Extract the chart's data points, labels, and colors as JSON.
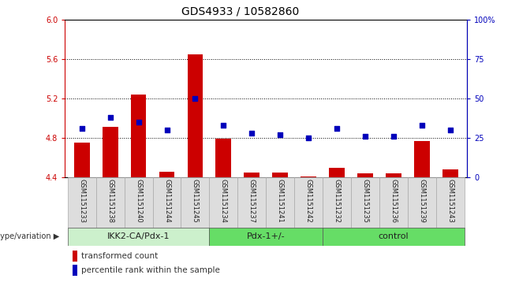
{
  "title": "GDS4933 / 10582860",
  "samples": [
    "GSM1151233",
    "GSM1151238",
    "GSM1151240",
    "GSM1151244",
    "GSM1151245",
    "GSM1151234",
    "GSM1151237",
    "GSM1151241",
    "GSM1151242",
    "GSM1151232",
    "GSM1151235",
    "GSM1151236",
    "GSM1151239",
    "GSM1151243"
  ],
  "bar_values": [
    4.75,
    4.91,
    5.24,
    4.46,
    5.65,
    4.79,
    4.45,
    4.45,
    4.41,
    4.5,
    4.44,
    4.44,
    4.77,
    4.48
  ],
  "dot_values": [
    31,
    38,
    35,
    30,
    50,
    33,
    28,
    27,
    25,
    31,
    26,
    26,
    33,
    30
  ],
  "bar_color": "#cc0000",
  "dot_color": "#0000bb",
  "bar_bottom": 4.4,
  "ylim_left": [
    4.4,
    6.0
  ],
  "ylim_right": [
    0,
    100
  ],
  "yticks_left": [
    4.4,
    4.8,
    5.2,
    5.6,
    6.0
  ],
  "yticks_right": [
    0,
    25,
    50,
    75,
    100
  ],
  "grid_values": [
    4.8,
    5.2,
    5.6
  ],
  "group_boundaries": [
    {
      "start": 0,
      "end": 5,
      "label": "IKK2-CA/Pdx-1",
      "color": "#ccf0cc"
    },
    {
      "start": 5,
      "end": 9,
      "label": "Pdx-1+/-",
      "color": "#66dd66"
    },
    {
      "start": 9,
      "end": 14,
      "label": "control",
      "color": "#66dd66"
    }
  ],
  "group_label": "genotype/variation",
  "legend_items": [
    {
      "label": "transformed count",
      "color": "#cc0000"
    },
    {
      "label": "percentile rank within the sample",
      "color": "#0000bb"
    }
  ],
  "left_color": "#cc0000",
  "right_color": "#0000bb",
  "sample_bg_color": "#dddddd",
  "sample_sep_color": "#aaaaaa",
  "title_fontsize": 10,
  "tick_fontsize": 7,
  "label_fontsize": 7,
  "group_fontsize": 8
}
